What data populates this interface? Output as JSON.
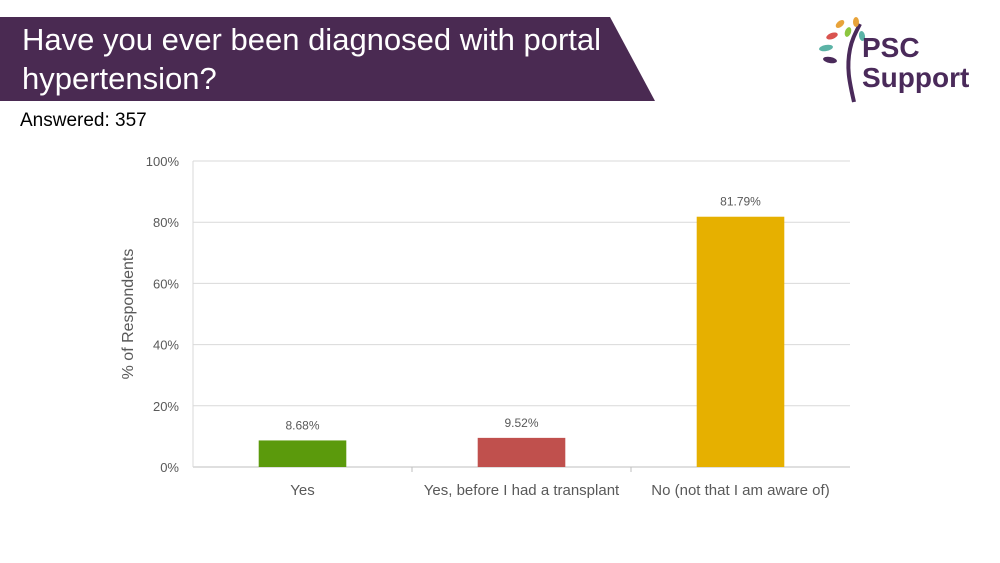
{
  "header": {
    "title": "Have you ever been diagnosed with portal hypertension?",
    "banner_color": "#4a2a52"
  },
  "answered": "Answered: 357",
  "logo": {
    "line1": "PSC",
    "line2": "Support",
    "text_color": "#4a2a5a"
  },
  "chart_data": {
    "type": "bar",
    "categories": [
      "Yes",
      "Yes, before I had a transplant",
      "No (not that I am aware of)"
    ],
    "values": [
      8.68,
      9.52,
      81.79
    ],
    "value_labels": [
      "8.68%",
      "9.52%",
      "81.79%"
    ],
    "colors": [
      "#5b9a0c",
      "#c0504d",
      "#e6b000"
    ],
    "ylabel": "% of Respondents",
    "ylim": [
      0,
      100
    ],
    "yticks": [
      0,
      20,
      40,
      60,
      80,
      100
    ],
    "ytick_labels": [
      "0%",
      "20%",
      "40%",
      "60%",
      "80%",
      "100%"
    ],
    "grid": true
  }
}
